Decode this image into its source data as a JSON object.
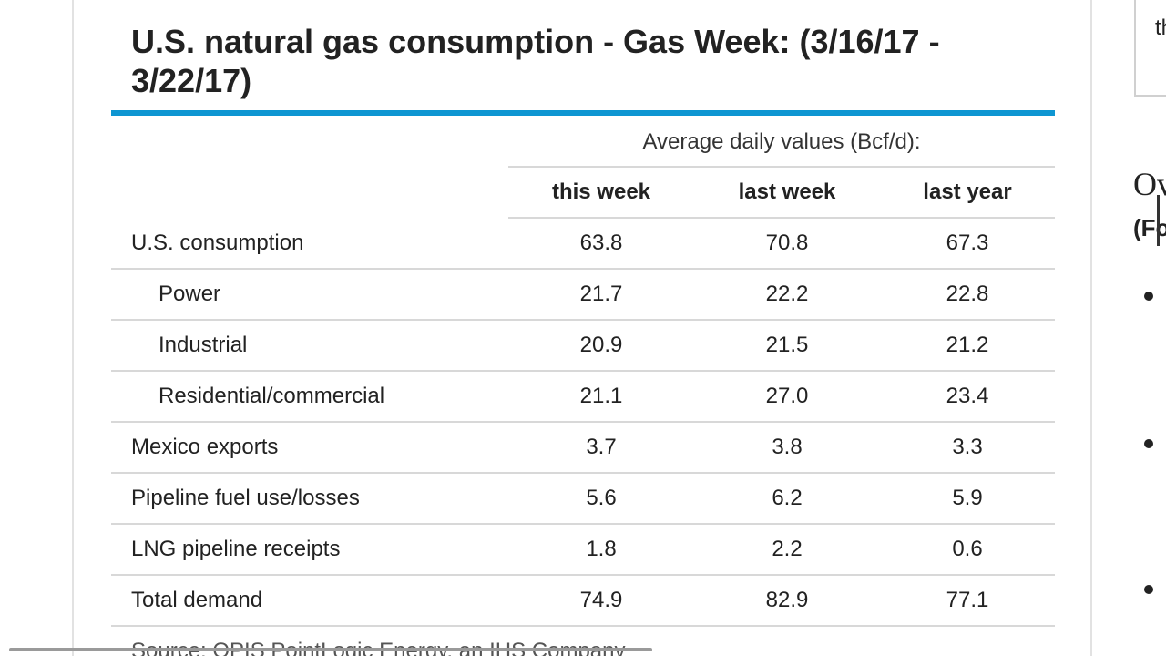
{
  "article": {
    "title": "U.S. natural gas consumption - Gas Week: (3/16/17 - 3/22/17)",
    "source": "Source: OPIS PointLogic Energy, an IHS Company"
  },
  "table": {
    "group_header": "Average daily values (Bcf/d):",
    "columns": [
      "this week",
      "last week",
      "last year"
    ],
    "rows": [
      {
        "label": "U.S. consumption",
        "indent": false,
        "values": [
          "63.8",
          "70.8",
          "67.3"
        ]
      },
      {
        "label": "Power",
        "indent": true,
        "values": [
          "21.7",
          "22.2",
          "22.8"
        ]
      },
      {
        "label": "Industrial",
        "indent": true,
        "values": [
          "20.9",
          "21.5",
          "21.2"
        ]
      },
      {
        "label": "Residential/commercial",
        "indent": true,
        "values": [
          "21.1",
          "27.0",
          "23.4"
        ]
      },
      {
        "label": "Mexico exports",
        "indent": false,
        "values": [
          "3.7",
          "3.8",
          "3.3"
        ]
      },
      {
        "label": "Pipeline fuel use/losses",
        "indent": false,
        "values": [
          "5.6",
          "6.2",
          "5.9"
        ]
      },
      {
        "label": "LNG pipeline receipts",
        "indent": false,
        "values": [
          "1.8",
          "2.2",
          "0.6"
        ]
      },
      {
        "label": "Total demand",
        "indent": false,
        "values": [
          "74.9",
          "82.9",
          "77.1"
        ]
      }
    ]
  },
  "right_panel": {
    "box_text": "th",
    "heading": "Ov",
    "subheading": "(Fo"
  },
  "colors": {
    "accent_bar": "#0e96d2",
    "rule": "#d8d8d8"
  }
}
